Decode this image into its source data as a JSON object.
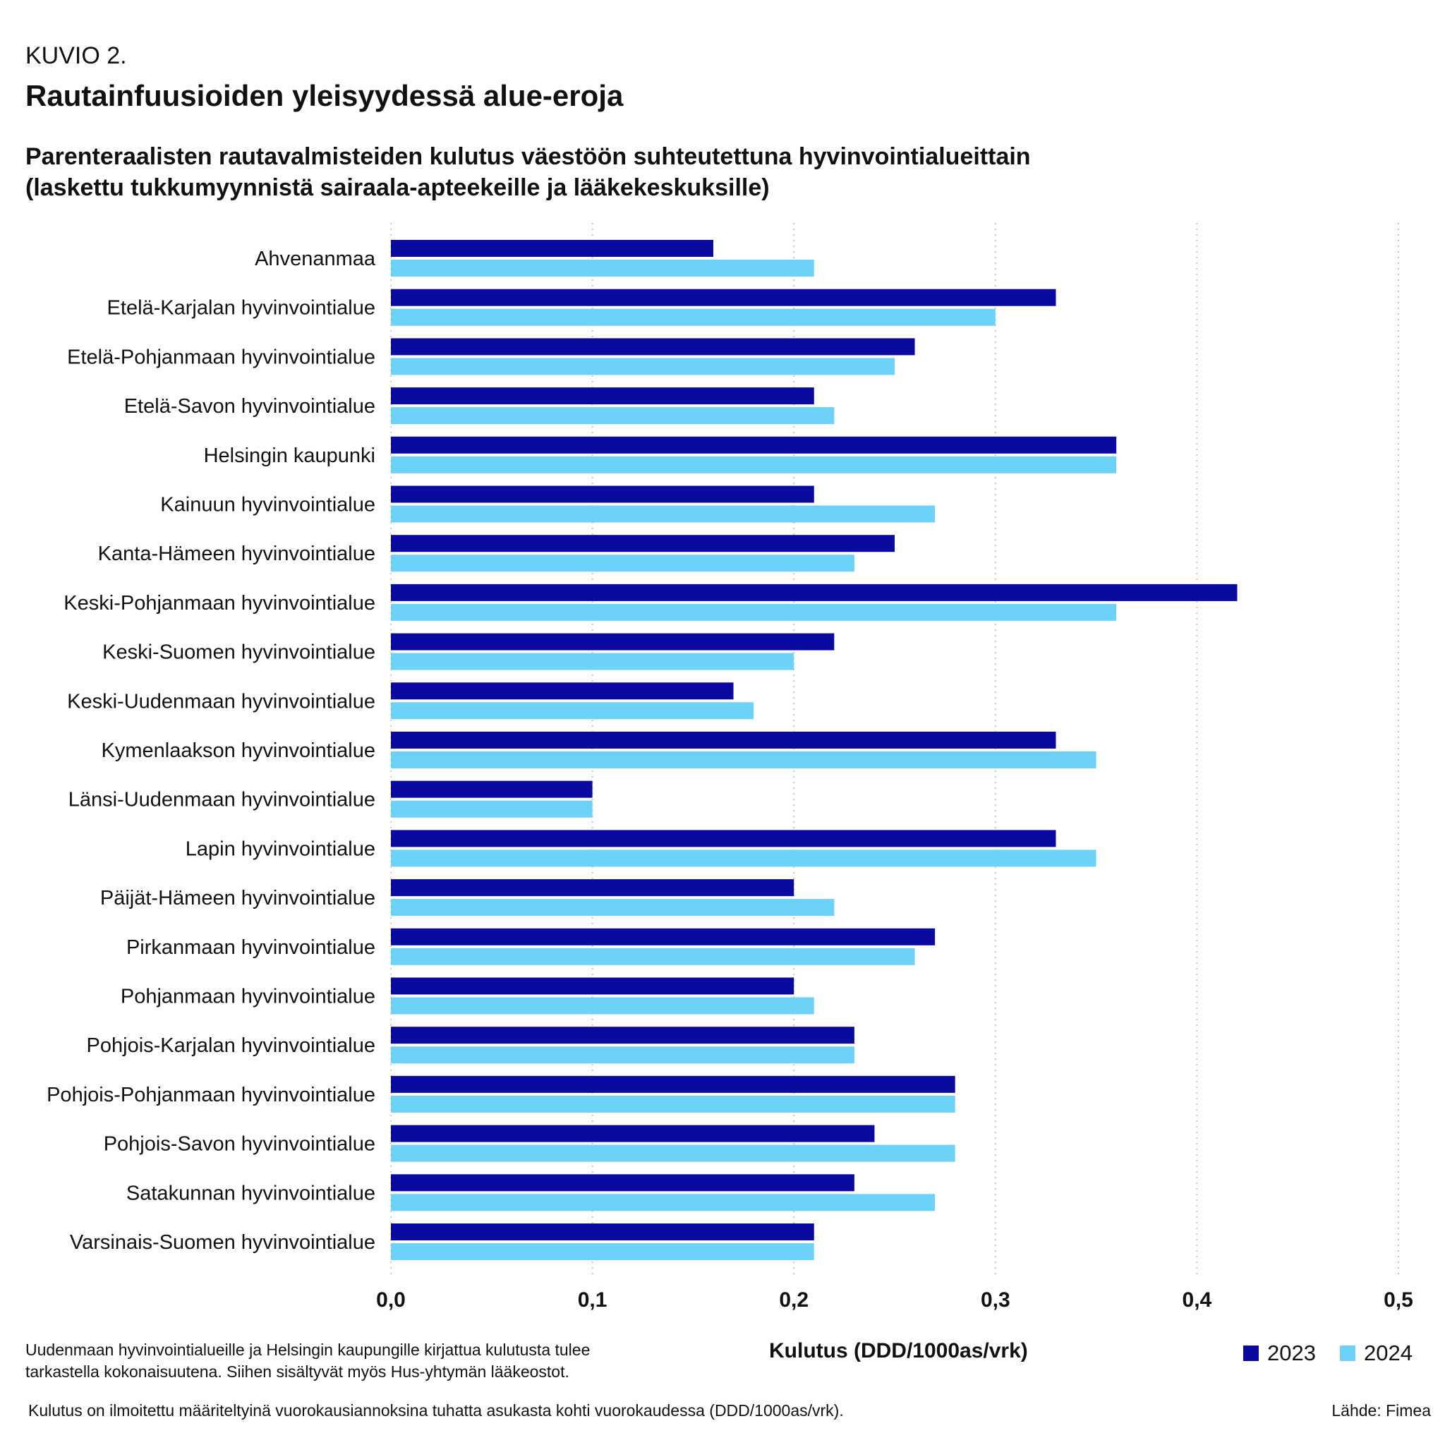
{
  "header": {
    "kicker": "KUVIO 2.",
    "headline": "Rautainfuusioiden yleisyydessä alue-eroja",
    "subtitle_line1": "Parenteraalisten rautavalmisteiden kulutus väestöön suhteutettuna hyvinvointialueittain",
    "subtitle_line2": "(laskettu tukkumyynnistä sairaala-apteekeille ja lääkekeskuksille)"
  },
  "footer": {
    "note_line1": "Uudenmaan hyvinvointialueille ja Helsingin kaupungille kirjattua kulutusta tulee",
    "note_line2": "tarkastella kokonaisuutena. Siihen sisältyvät myös Hus-yhtymän lääkeostot.",
    "footnote": "Kulutus on ilmoitettu määriteltyinä vuorokausiannoksina tuhatta asukasta kohti vuorokaudessa (DDD/1000as/vrk).",
    "source": "Lähde: Fimea"
  },
  "colors": {
    "series_2023": "#0a0aa0",
    "series_2024": "#6dd2f7",
    "grid": "#c8c8c8"
  },
  "chart_data": {
    "type": "bar",
    "orientation": "horizontal",
    "xlabel": "Kulutus (DDD/1000as/vrk)",
    "xlim": [
      0,
      0.5
    ],
    "xticks": [
      0,
      0.1,
      0.2,
      0.3,
      0.4,
      0.5
    ],
    "xtick_labels": [
      "0,0",
      "0,1",
      "0,2",
      "0,3",
      "0,4",
      "0,5"
    ],
    "grid": "vertical dotted",
    "legend": "bottom-right",
    "categories": [
      "Ahvenanmaa",
      "Etelä-Karjalan hyvinvointialue",
      "Etelä-Pohjanmaan hyvinvointialue",
      "Etelä-Savon hyvinvointialue",
      "Helsingin kaupunki",
      "Kainuun hyvinvointialue",
      "Kanta-Hämeen hyvinvointialue",
      "Keski-Pohjanmaan hyvinvointialue",
      "Keski-Suomen hyvinvointialue",
      "Keski-Uudenmaan hyvinvointialue",
      "Kymenlaakson hyvinvointialue",
      "Länsi-Uudenmaan hyvinvointialue",
      "Lapin hyvinvointialue",
      "Päijät-Hämeen hyvinvointialue",
      "Pirkanmaan hyvinvointialue",
      "Pohjanmaan hyvinvointialue",
      "Pohjois-Karjalan hyvinvointialue",
      "Pohjois-Pohjanmaan hyvinvointialue",
      "Pohjois-Savon hyvinvointialue",
      "Satakunnan hyvinvointialue",
      "Varsinais-Suomen hyvinvointialue"
    ],
    "series": [
      {
        "name": "2023",
        "values": [
          0.16,
          0.33,
          0.26,
          0.21,
          0.36,
          0.21,
          0.25,
          0.42,
          0.22,
          0.17,
          0.33,
          0.1,
          0.33,
          0.2,
          0.27,
          0.2,
          0.23,
          0.28,
          0.24,
          0.23,
          0.21
        ]
      },
      {
        "name": "2024",
        "values": [
          0.21,
          0.3,
          0.25,
          0.22,
          0.36,
          0.27,
          0.23,
          0.36,
          0.2,
          0.18,
          0.35,
          0.1,
          0.35,
          0.22,
          0.26,
          0.21,
          0.23,
          0.28,
          0.28,
          0.27,
          0.21
        ]
      }
    ]
  }
}
